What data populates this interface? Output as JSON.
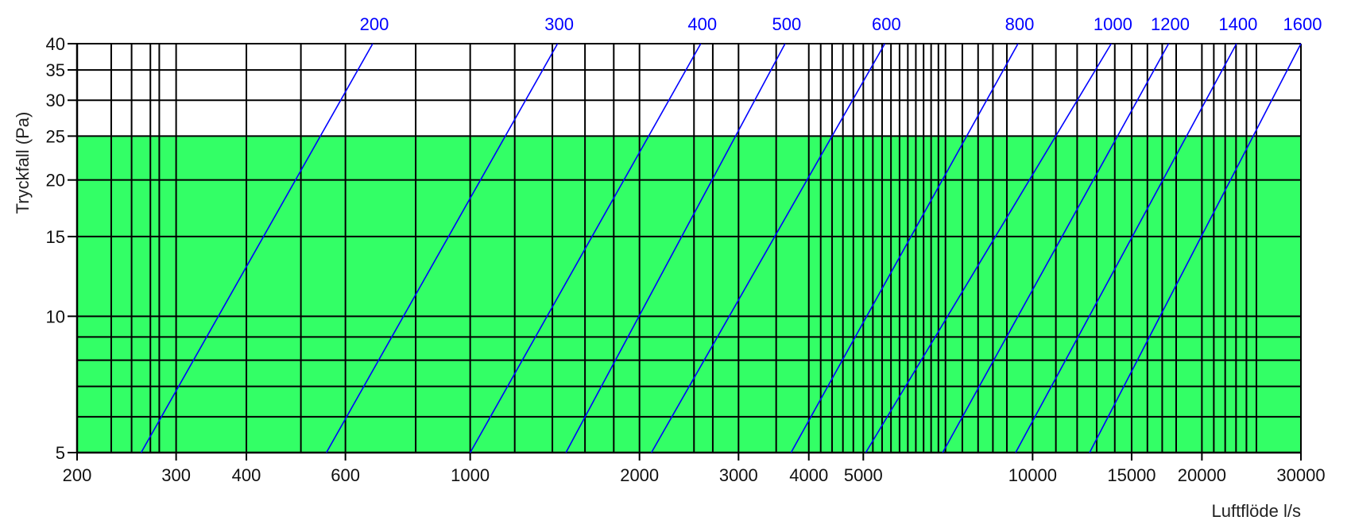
{
  "chart_data": {
    "type": "line",
    "title": "",
    "xlabel": "Luftflöde l/s",
    "ylabel": "Tryckfall (Pa)",
    "x_scale": "log",
    "y_scale": "log",
    "xlim": [
      200,
      30000
    ],
    "ylim": [
      5,
      40
    ],
    "grid": true,
    "x_ticks": [
      200,
      300,
      400,
      600,
      1000,
      2000,
      3000,
      4000,
      5000,
      10000,
      15000,
      20000,
      30000
    ],
    "x_tick_labels": [
      "200",
      "300",
      "400",
      "600",
      "1000",
      "2000",
      "3000",
      "4000",
      "5000",
      "10000",
      "15000",
      "20000",
      "30000"
    ],
    "y_ticks": [
      5,
      10,
      15,
      20,
      25,
      30,
      35,
      40
    ],
    "y_tick_labels": [
      "5",
      "10",
      "15",
      "20",
      "25",
      "30",
      "35",
      "40"
    ],
    "x_minor_grid": [
      230,
      250,
      270,
      280,
      500,
      800,
      1200,
      1400,
      1600,
      1800,
      2500,
      2700,
      3500,
      4200,
      4400,
      4600,
      4800,
      5200,
      5400,
      5600,
      5800,
      6000,
      6200,
      6400,
      6600,
      6800,
      7000,
      7500,
      8000,
      8500,
      9000,
      11000,
      12000,
      13000,
      14000,
      16000,
      17000,
      18000,
      21000,
      22000,
      23000,
      24000,
      25000
    ],
    "y_minor_grid": [
      6,
      7,
      8,
      9
    ],
    "acceptable_region": {
      "color": "#33ff66",
      "y_max": 25
    },
    "line_color": "#0000ff",
    "series": [
      {
        "name": "200",
        "x": [
          260,
          671
        ],
        "y": [
          5,
          40
        ]
      },
      {
        "name": "300",
        "x": [
          555,
          1430
        ],
        "y": [
          5,
          40
        ]
      },
      {
        "name": "400",
        "x": [
          1000,
          2570
        ],
        "y": [
          5,
          40
        ]
      },
      {
        "name": "500",
        "x": [
          1480,
          3630
        ],
        "y": [
          5,
          40
        ]
      },
      {
        "name": "600",
        "x": [
          2100,
          5460
        ],
        "y": [
          5,
          40
        ]
      },
      {
        "name": "800",
        "x": [
          3720,
          9420
        ],
        "y": [
          5,
          40
        ]
      },
      {
        "name": "1000",
        "x": [
          5050,
          13800
        ],
        "y": [
          5,
          40
        ]
      },
      {
        "name": "1200",
        "x": [
          6920,
          17450
        ],
        "y": [
          5,
          40
        ]
      },
      {
        "name": "1400",
        "x": [
          9330,
          23040
        ],
        "y": [
          5,
          40
        ]
      },
      {
        "name": "1600",
        "x": [
          12630,
          30000
        ],
        "y": [
          5,
          40
        ]
      }
    ]
  }
}
